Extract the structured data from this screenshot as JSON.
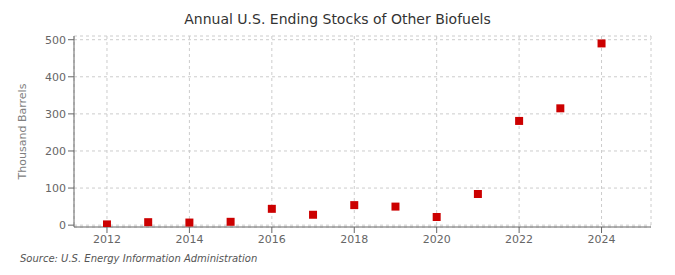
{
  "chart_data": {
    "type": "scatter",
    "title": "Annual U.S. Ending Stocks of Other Biofuels",
    "ylabel": "Thousand Barrels",
    "annotations": [
      "Source: U.S. Energy Information Administration"
    ],
    "x": [
      2012,
      2013,
      2014,
      2015,
      2016,
      2017,
      2018,
      2019,
      2020,
      2021,
      2022,
      2023,
      2024
    ],
    "values": [
      2,
      8,
      7,
      9,
      44,
      28,
      54,
      50,
      22,
      84,
      281,
      315,
      490
    ],
    "color": "#cc0000",
    "marker": "square",
    "xlim": [
      2011.2,
      2025.2
    ],
    "ylim": [
      -5,
      510
    ],
    "xticks": [
      2012,
      2014,
      2016,
      2018,
      2020,
      2022,
      2024
    ],
    "yticks": [
      0,
      100,
      200,
      300,
      400,
      500
    ],
    "grid": true
  }
}
